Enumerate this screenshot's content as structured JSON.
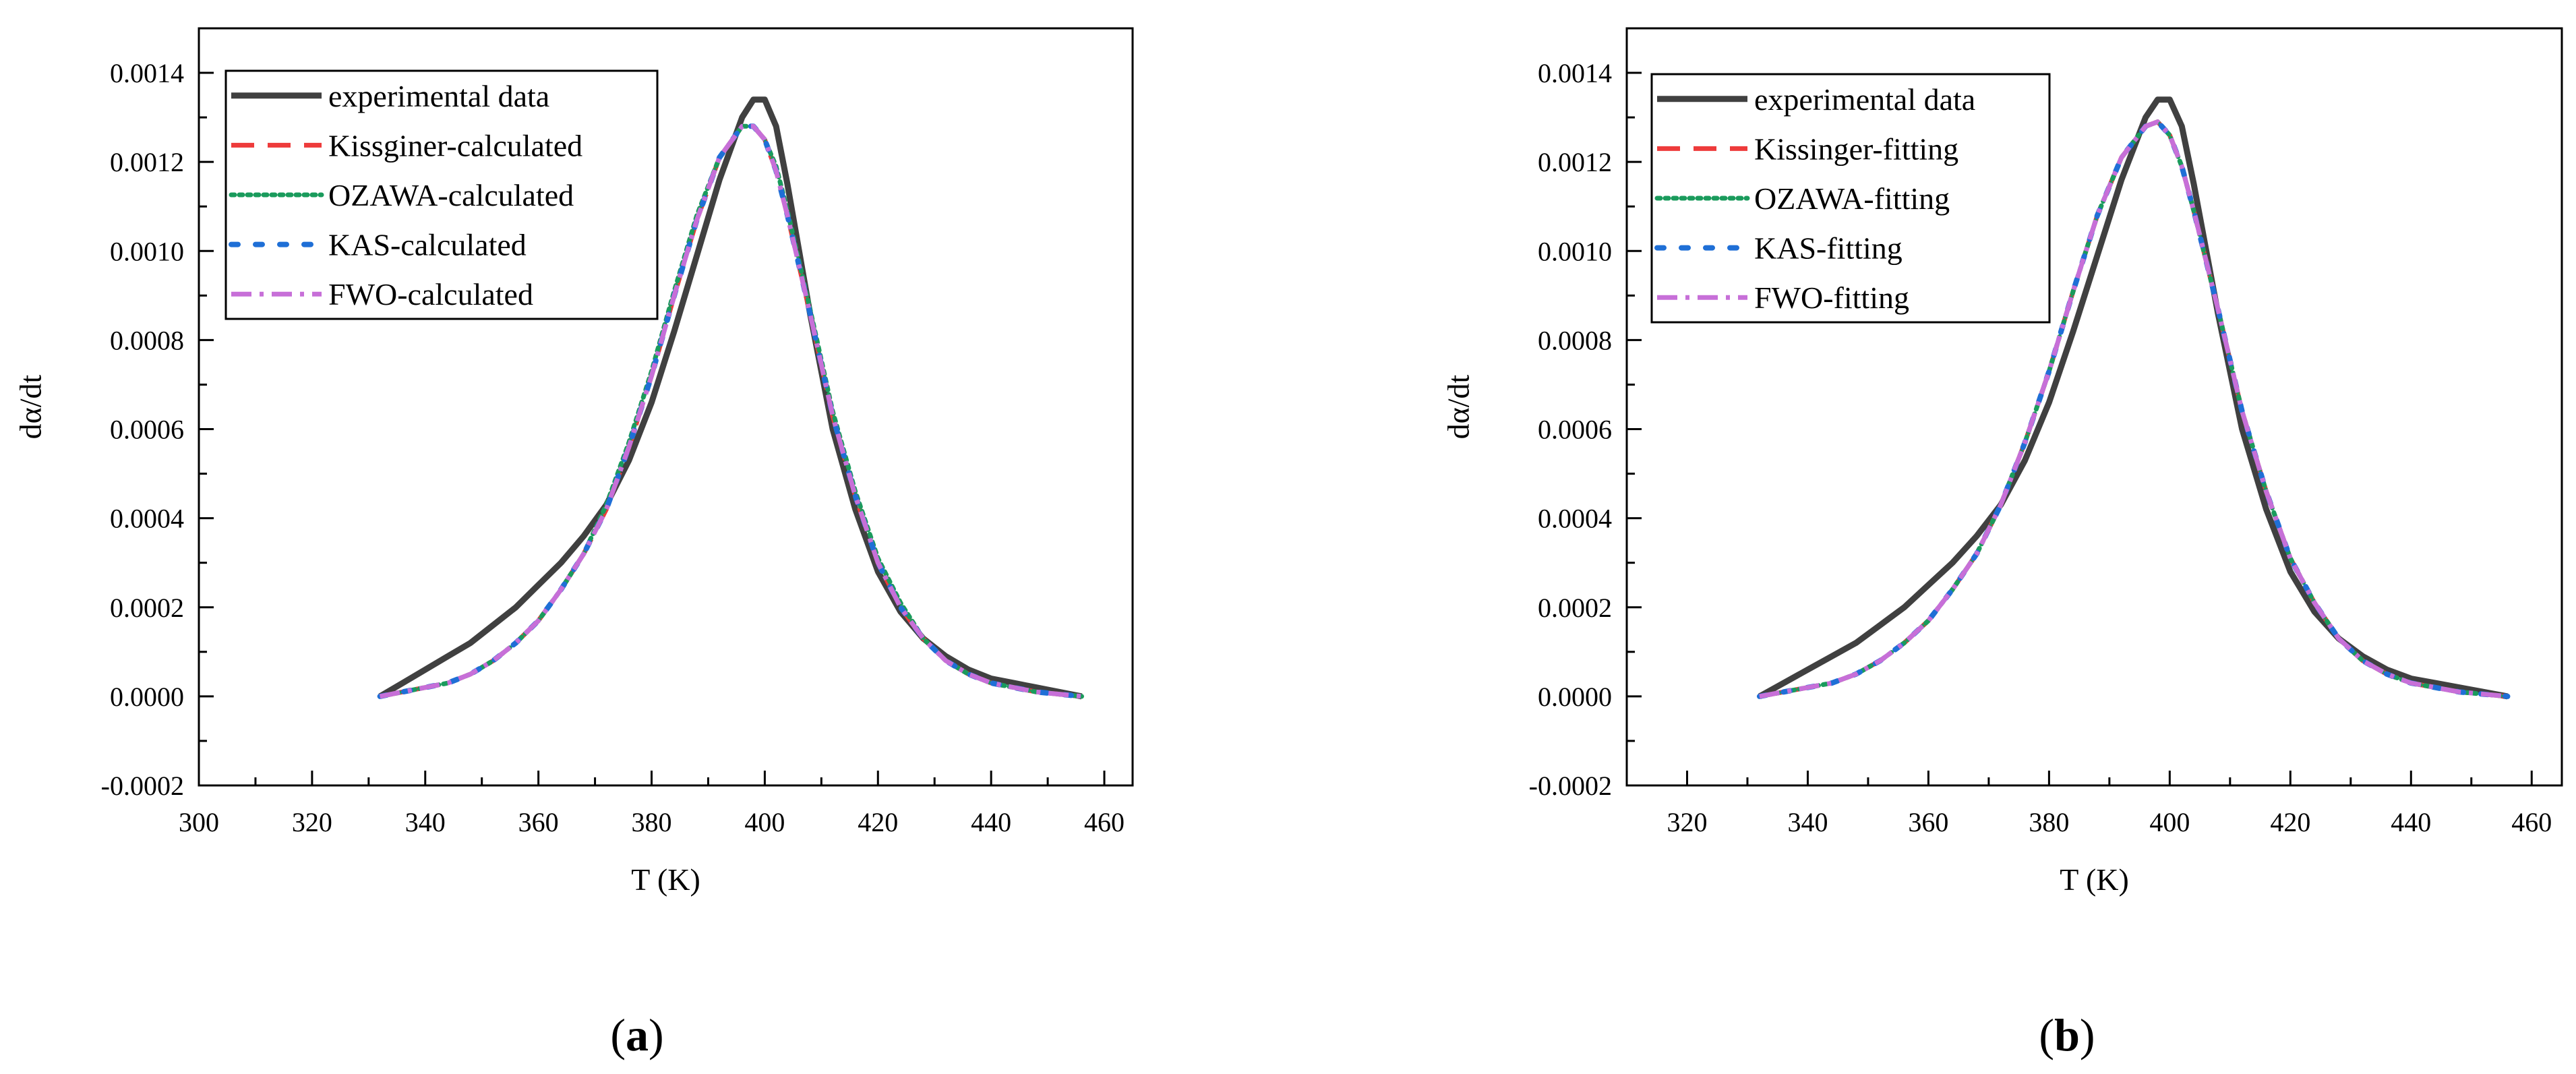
{
  "chart_data": [
    {
      "panel_label": "a",
      "type": "line",
      "xlabel": "T (K)",
      "ylabel": "dα/dt",
      "xlim": [
        300,
        465
      ],
      "ylim": [
        -0.0002,
        0.0015
      ],
      "x_ticks": [
        300,
        320,
        340,
        360,
        380,
        400,
        420,
        440,
        460
      ],
      "x_tick_labels": [
        "300",
        "320",
        "340",
        "360",
        "380",
        "400",
        "420",
        "440",
        "460"
      ],
      "y_ticks": [
        -0.0002,
        0.0,
        0.0002,
        0.0004,
        0.0006,
        0.0008,
        0.001,
        0.0012,
        0.0014
      ],
      "y_tick_labels": [
        "-0.0002",
        "0.0000",
        "0.0002",
        "0.0004",
        "0.0006",
        "0.0008",
        "0.0010",
        "0.0012",
        "0.0014"
      ],
      "grid": false,
      "legend_position": "top-left",
      "x": [
        332,
        336,
        340,
        344,
        348,
        352,
        356,
        360,
        364,
        368,
        372,
        376,
        380,
        384,
        388,
        392,
        396,
        398,
        400,
        402,
        404,
        408,
        412,
        416,
        420,
        424,
        428,
        432,
        436,
        440,
        444,
        448,
        452,
        456
      ],
      "series": [
        {
          "name": "experimental data",
          "color": "#404040",
          "dash": "solid",
          "values": [
            0.0,
            3e-05,
            6e-05,
            9e-05,
            0.00012,
            0.00016,
            0.0002,
            0.00025,
            0.0003,
            0.00036,
            0.00043,
            0.00053,
            0.00066,
            0.00082,
            0.00099,
            0.00116,
            0.0013,
            0.00134,
            0.00134,
            0.00128,
            0.00115,
            0.00086,
            0.0006,
            0.00042,
            0.00028,
            0.00019,
            0.00013,
            9e-05,
            6e-05,
            4e-05,
            3e-05,
            2e-05,
            1e-05,
            0.0
          ]
        },
        {
          "name": "Kissginer-calculated",
          "color": "#ee3b3b",
          "dash": "long-dash",
          "values": [
            0.0,
            1e-05,
            2e-05,
            3e-05,
            5e-05,
            8e-05,
            0.00012,
            0.00017,
            0.00024,
            0.00032,
            0.00042,
            0.00056,
            0.00072,
            0.0009,
            0.00107,
            0.00121,
            0.00128,
            0.00128,
            0.00125,
            0.00118,
            0.00108,
            0.00086,
            0.00063,
            0.00045,
            0.0003,
            0.0002,
            0.00013,
            8e-05,
            5e-05,
            3e-05,
            2e-05,
            1e-05,
            5e-06,
            0.0
          ]
        },
        {
          "name": "OZAWA-calculated",
          "color": "#1a9b5c",
          "dash": "dotted",
          "values": [
            0.0,
            1e-05,
            2e-05,
            3e-05,
            5e-05,
            8e-05,
            0.00012,
            0.00017,
            0.00024,
            0.00032,
            0.00043,
            0.00057,
            0.00073,
            0.00091,
            0.00108,
            0.00121,
            0.00128,
            0.00128,
            0.00125,
            0.00119,
            0.00109,
            0.00087,
            0.00064,
            0.00046,
            0.00031,
            0.00021,
            0.00013,
            8e-05,
            5e-05,
            3e-05,
            2e-05,
            1e-05,
            5e-06,
            0.0
          ]
        },
        {
          "name": "KAS-calculated",
          "color": "#1f6fd6",
          "dash": "short-dot",
          "values": [
            0.0,
            1e-05,
            2e-05,
            3e-05,
            5e-05,
            8e-05,
            0.00012,
            0.00017,
            0.00024,
            0.00032,
            0.00042,
            0.00056,
            0.00072,
            0.0009,
            0.00107,
            0.00121,
            0.00128,
            0.00128,
            0.00125,
            0.00118,
            0.00108,
            0.00086,
            0.00063,
            0.00045,
            0.0003,
            0.0002,
            0.00013,
            8e-05,
            5e-05,
            3e-05,
            2e-05,
            1e-05,
            5e-06,
            0.0
          ]
        },
        {
          "name": "FWO-calculated",
          "color": "#c76fd8",
          "dash": "dash-dot",
          "values": [
            0.0,
            1e-05,
            2e-05,
            3e-05,
            5e-05,
            8e-05,
            0.00012,
            0.00017,
            0.00024,
            0.00032,
            0.00042,
            0.00056,
            0.00072,
            0.0009,
            0.00107,
            0.00121,
            0.00128,
            0.00128,
            0.00125,
            0.00118,
            0.00108,
            0.00086,
            0.00063,
            0.00045,
            0.0003,
            0.0002,
            0.00013,
            8e-05,
            5e-05,
            3e-05,
            2e-05,
            1e-05,
            5e-06,
            0.0
          ]
        }
      ]
    },
    {
      "panel_label": "b",
      "type": "line",
      "xlabel": "T (K)",
      "ylabel": "dα/dt",
      "xlim": [
        310,
        465
      ],
      "ylim": [
        -0.0002,
        0.0015
      ],
      "x_ticks": [
        320,
        340,
        360,
        380,
        400,
        420,
        440,
        460
      ],
      "x_tick_labels": [
        "320",
        "340",
        "360",
        "380",
        "400",
        "420",
        "440",
        "460"
      ],
      "y_ticks": [
        -0.0002,
        0.0,
        0.0002,
        0.0004,
        0.0006,
        0.0008,
        0.001,
        0.0012,
        0.0014
      ],
      "y_tick_labels": [
        "-0.0002",
        "0.0000",
        "0.0002",
        "0.0004",
        "0.0006",
        "0.0008",
        "0.0010",
        "0.0012",
        "0.0014"
      ],
      "grid": false,
      "legend_position": "top-left",
      "x": [
        332,
        336,
        340,
        344,
        348,
        352,
        356,
        360,
        364,
        368,
        372,
        376,
        380,
        384,
        388,
        392,
        396,
        398,
        400,
        402,
        404,
        408,
        412,
        416,
        420,
        424,
        428,
        432,
        436,
        440,
        444,
        448,
        452,
        456
      ],
      "series": [
        {
          "name": "experimental data",
          "color": "#404040",
          "dash": "solid",
          "values": [
            0.0,
            3e-05,
            6e-05,
            9e-05,
            0.00012,
            0.00016,
            0.0002,
            0.00025,
            0.0003,
            0.00036,
            0.00043,
            0.00053,
            0.00066,
            0.00082,
            0.00099,
            0.00116,
            0.0013,
            0.00134,
            0.00134,
            0.00128,
            0.00115,
            0.00086,
            0.0006,
            0.00042,
            0.00028,
            0.00019,
            0.00013,
            9e-05,
            6e-05,
            4e-05,
            3e-05,
            2e-05,
            1e-05,
            0.0
          ]
        },
        {
          "name": "Kissinger-fitting",
          "color": "#ee3b3b",
          "dash": "long-dash",
          "values": [
            0.0,
            1e-05,
            2e-05,
            3e-05,
            5e-05,
            8e-05,
            0.00012,
            0.00017,
            0.00024,
            0.00032,
            0.00043,
            0.00057,
            0.00073,
            0.00091,
            0.00108,
            0.00121,
            0.00128,
            0.00129,
            0.00126,
            0.00119,
            0.00109,
            0.00087,
            0.00064,
            0.00046,
            0.00031,
            0.00021,
            0.00013,
            8e-05,
            5e-05,
            3e-05,
            2e-05,
            1e-05,
            5e-06,
            0.0
          ]
        },
        {
          "name": "OZAWA-fitting",
          "color": "#1a9b5c",
          "dash": "dotted",
          "values": [
            0.0,
            1e-05,
            2e-05,
            3e-05,
            5e-05,
            8e-05,
            0.00012,
            0.00017,
            0.00024,
            0.00032,
            0.00043,
            0.00057,
            0.00073,
            0.00091,
            0.00108,
            0.00121,
            0.00128,
            0.00129,
            0.00126,
            0.00119,
            0.00109,
            0.00087,
            0.00064,
            0.00046,
            0.00031,
            0.00021,
            0.00013,
            8e-05,
            5e-05,
            3e-05,
            2e-05,
            1e-05,
            5e-06,
            0.0
          ]
        },
        {
          "name": "KAS-fitting",
          "color": "#1f6fd6",
          "dash": "short-dot",
          "values": [
            0.0,
            1e-05,
            2e-05,
            3e-05,
            5e-05,
            8e-05,
            0.00012,
            0.00017,
            0.00024,
            0.00032,
            0.00043,
            0.00057,
            0.00073,
            0.00091,
            0.00108,
            0.00121,
            0.00128,
            0.00129,
            0.00126,
            0.00119,
            0.00109,
            0.00087,
            0.00064,
            0.00046,
            0.00031,
            0.00021,
            0.00013,
            8e-05,
            5e-05,
            3e-05,
            2e-05,
            1e-05,
            5e-06,
            0.0
          ]
        },
        {
          "name": "FWO-fitting",
          "color": "#c76fd8",
          "dash": "dash-dot",
          "values": [
            0.0,
            1e-05,
            2e-05,
            3e-05,
            5e-05,
            8e-05,
            0.00012,
            0.00017,
            0.00024,
            0.00032,
            0.00043,
            0.00057,
            0.00073,
            0.00091,
            0.00108,
            0.00121,
            0.00128,
            0.00129,
            0.00126,
            0.00119,
            0.00109,
            0.00087,
            0.00064,
            0.00046,
            0.00031,
            0.00021,
            0.00013,
            8e-05,
            5e-05,
            3e-05,
            2e-05,
            1e-05,
            5e-06,
            0.0
          ]
        }
      ]
    }
  ]
}
